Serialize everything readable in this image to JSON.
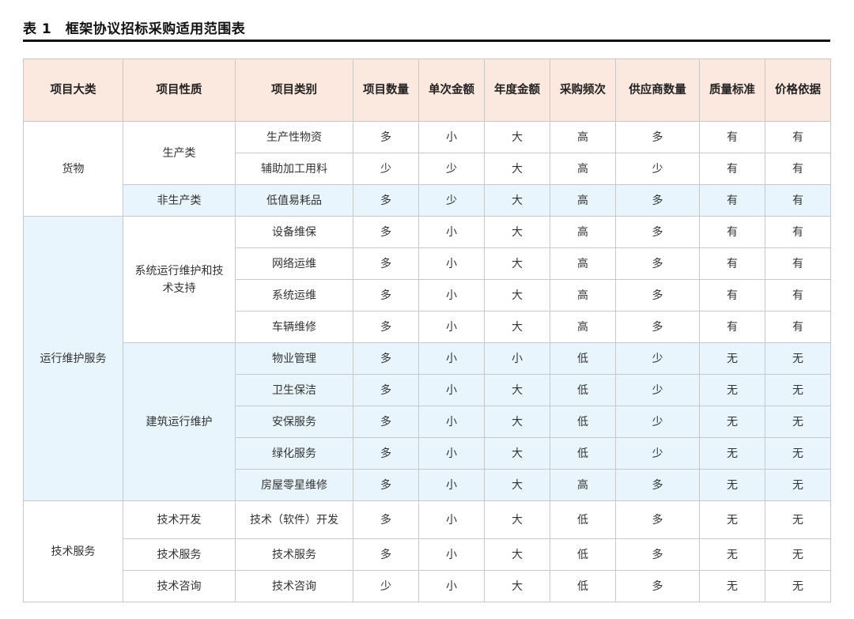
{
  "title": "表 1　框架协议招标采购适用范围表",
  "colors": {
    "header_bg": "#fbe9df",
    "shaded_bg": "#e8f5fc"
  },
  "columns": [
    "项目大类",
    "项目性质",
    "项目类别",
    "项目数量",
    "单次金额",
    "年度金额",
    "采购频次",
    "供应商数量",
    "质量标准",
    "价格依据"
  ],
  "categories": [
    {
      "name": "货物",
      "shaded": false,
      "groups": [
        {
          "name": "生产类",
          "shaded": false,
          "items": [
            {
              "name": "生产性物资",
              "values": [
                "多",
                "小",
                "大",
                "高",
                "多",
                "有",
                "有"
              ]
            },
            {
              "name": "辅助加工用料",
              "values": [
                "少",
                "少",
                "大",
                "高",
                "少",
                "有",
                "有"
              ]
            }
          ]
        },
        {
          "name": "非生产类",
          "shaded": true,
          "items": [
            {
              "name": "低值易耗品",
              "values": [
                "多",
                "少",
                "大",
                "高",
                "多",
                "有",
                "有"
              ]
            }
          ]
        }
      ]
    },
    {
      "name": "运行维护服务",
      "shaded": true,
      "groups": [
        {
          "name": "系统运行维护和技术支持",
          "shaded": false,
          "items": [
            {
              "name": "设备维保",
              "values": [
                "多",
                "小",
                "大",
                "高",
                "多",
                "有",
                "有"
              ]
            },
            {
              "name": "网络运维",
              "values": [
                "多",
                "小",
                "大",
                "高",
                "多",
                "有",
                "有"
              ]
            },
            {
              "name": "系统运维",
              "values": [
                "多",
                "小",
                "大",
                "高",
                "多",
                "有",
                "有"
              ]
            },
            {
              "name": "车辆维修",
              "values": [
                "多",
                "小",
                "大",
                "高",
                "多",
                "有",
                "有"
              ]
            }
          ]
        },
        {
          "name": "建筑运行维护",
          "shaded": true,
          "items": [
            {
              "name": "物业管理",
              "values": [
                "多",
                "小",
                "小",
                "低",
                "少",
                "无",
                "无"
              ]
            },
            {
              "name": "卫生保洁",
              "values": [
                "多",
                "小",
                "大",
                "低",
                "少",
                "无",
                "无"
              ]
            },
            {
              "name": "安保服务",
              "values": [
                "多",
                "小",
                "大",
                "低",
                "少",
                "无",
                "无"
              ]
            },
            {
              "name": "绿化服务",
              "values": [
                "多",
                "小",
                "大",
                "低",
                "少",
                "无",
                "无"
              ]
            },
            {
              "name": "房屋零星维修",
              "values": [
                "多",
                "小",
                "大",
                "高",
                "多",
                "无",
                "无"
              ]
            }
          ]
        }
      ]
    },
    {
      "name": "技术服务",
      "shaded": false,
      "groups": [
        {
          "name": "技术开发",
          "shaded": false,
          "items": [
            {
              "name": "技术（软件）开发",
              "values": [
                "多",
                "小",
                "大",
                "低",
                "多",
                "无",
                "无"
              ]
            }
          ]
        },
        {
          "name": "技术服务",
          "shaded": false,
          "items": [
            {
              "name": "技术服务",
              "values": [
                "多",
                "小",
                "大",
                "低",
                "多",
                "无",
                "无"
              ]
            }
          ]
        },
        {
          "name": "技术咨询",
          "shaded": false,
          "items": [
            {
              "name": "技术咨询",
              "values": [
                "少",
                "小",
                "大",
                "低",
                "多",
                "无",
                "无"
              ]
            }
          ]
        }
      ]
    }
  ]
}
